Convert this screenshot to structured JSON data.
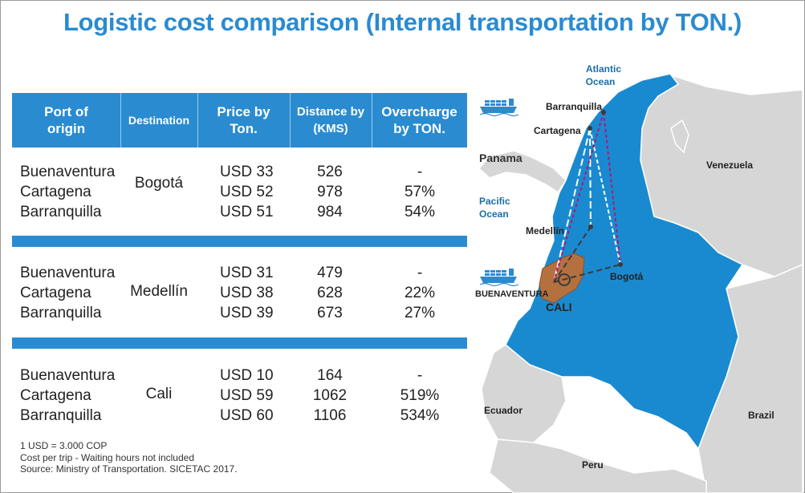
{
  "title": "Logistic cost comparison (Internal transportation by TON.)",
  "table": {
    "headers": {
      "origin": [
        "Port of",
        "origin"
      ],
      "destination": [
        "Destination"
      ],
      "price": [
        "Price by",
        "Ton."
      ],
      "distance": [
        "Distance by",
        "(KMS)"
      ],
      "overcharge": [
        "Overcharge",
        "by TON."
      ]
    },
    "groups": [
      {
        "destination": "Bogotá",
        "rows": [
          {
            "origin": "Buenaventura",
            "price": "USD 33",
            "distance": "526",
            "overcharge": "-"
          },
          {
            "origin": "Cartagena",
            "price": "USD 52",
            "distance": "978",
            "overcharge": "57%"
          },
          {
            "origin": "Barranquilla",
            "price": "USD 51",
            "distance": "984",
            "overcharge": "54%"
          }
        ]
      },
      {
        "destination": "Medellín",
        "rows": [
          {
            "origin": "Buenaventura",
            "price": "USD 31",
            "distance": "479",
            "overcharge": "-"
          },
          {
            "origin": "Cartagena",
            "price": "USD 38",
            "distance": "628",
            "overcharge": "22%"
          },
          {
            "origin": "Barranquilla",
            "price": "USD 39",
            "distance": "673",
            "overcharge": "27%"
          }
        ]
      },
      {
        "destination": "Cali",
        "rows": [
          {
            "origin": "Buenaventura",
            "price": "USD 10",
            "distance": "164",
            "overcharge": "-"
          },
          {
            "origin": "Cartagena",
            "price": "USD 59",
            "distance": "1062",
            "overcharge": "519%"
          },
          {
            "origin": "Barranquilla",
            "price": "USD 60",
            "distance": "1106",
            "overcharge": "534%"
          }
        ]
      }
    ]
  },
  "notes": [
    "1 USD = 3.000 COP",
    "Cost per trip - Waiting hours not included",
    "Source: Ministry of Transportation. SICETAC 2017."
  ],
  "map": {
    "labels": {
      "atlantic": [
        "Atlantic",
        "Ocean"
      ],
      "pacific": [
        "Pacific",
        "Ocean"
      ],
      "barranquilla": "Barranquilla",
      "cartagena": "Cartagena",
      "panama": "Panama",
      "venezuela": "Venezuela",
      "medellin": "Medellín",
      "bogota": "Bogotá",
      "buenaventura": "BUENAVENTURA",
      "cali": "CALI",
      "ecuador": "Ecuador",
      "brazil": "Brazil",
      "peru": "Peru"
    },
    "icons": [
      "ship-icon",
      "ship-icon"
    ],
    "colors": {
      "colombia": "#1a8ad0",
      "neighbors": "#d6d6d6",
      "cali_region": "#b5703f",
      "route_cartagena": "#ffffff",
      "route_barranquilla": "#b0157a",
      "route_buenaventura": "#3a3a3a",
      "header_blue": "#2a8bd1"
    }
  }
}
